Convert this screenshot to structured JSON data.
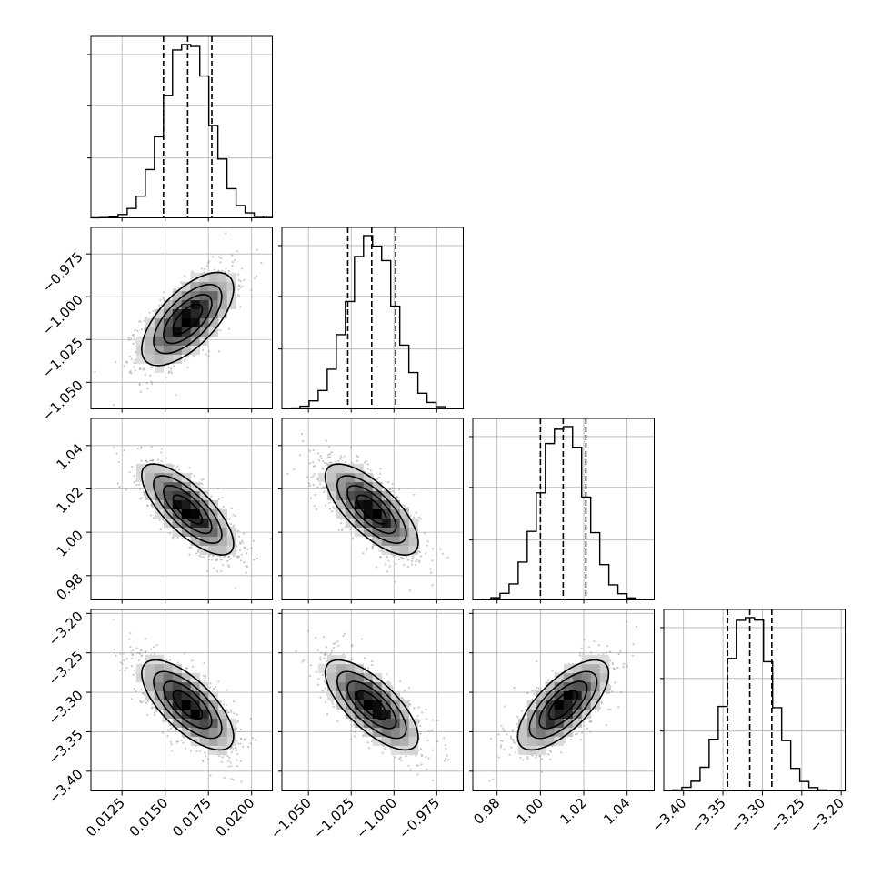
{
  "chart_data": {
    "type": "corner",
    "grid": true,
    "quantile_lines": [
      0.16,
      0.5,
      0.84
    ],
    "colors": {
      "ink": "#000000",
      "grid": "#b0b0b0",
      "scatter": "#9a9a9a"
    },
    "parameters": [
      {
        "mean": 0.0163,
        "sd": 0.00133,
        "hist_max": 1.0,
        "range": [
          0.0107,
          0.0212
        ],
        "ticks": [
          0.0125,
          0.015,
          0.0175,
          0.02
        ],
        "tick_labels": [
          "0.0125",
          "0.0150",
          "0.0175",
          "0.0200"
        ],
        "quantiles": [
          0.0149,
          0.0163,
          0.0177
        ]
      },
      {
        "mean": -1.013,
        "sd": 0.0136,
        "hist_max": 1.0,
        "range": [
          -1.0655,
          -0.9595
        ],
        "ticks": [
          -1.05,
          -1.025,
          -1.0,
          -0.975
        ],
        "tick_labels": [
          "−1.050",
          "−1.025",
          "−1.000",
          "−0.975"
        ],
        "quantiles": [
          -1.027,
          -1.013,
          -0.999
        ]
      },
      {
        "mean": 1.0105,
        "sd": 0.0105,
        "hist_max": 1.0,
        "range": [
          0.9688,
          1.0525
        ],
        "ticks": [
          0.98,
          1.0,
          1.02,
          1.04
        ],
        "tick_labels": [
          "0.98",
          "1.00",
          "1.02",
          "1.04"
        ],
        "quantiles": [
          1.0,
          1.0105,
          1.021
        ]
      },
      {
        "mean": -3.316,
        "sd": 0.0285,
        "hist_max": 1.0,
        "range": [
          -3.425,
          -3.195
        ],
        "ticks": [
          -3.4,
          -3.35,
          -3.3,
          -3.25,
          -3.2
        ],
        "tick_labels": [
          "−3.40",
          "−3.35",
          "−3.30",
          "−3.25",
          "−3.20"
        ],
        "quantiles": [
          -3.344,
          -3.316,
          -3.288
        ]
      }
    ],
    "correlations": [
      [
        1.0,
        0.65,
        -0.75,
        -0.7
      ],
      [
        0.65,
        1.0,
        -0.72,
        -0.72
      ],
      [
        -0.75,
        -0.72,
        1.0,
        0.7
      ],
      [
        -0.7,
        -0.72,
        0.7,
        1.0
      ]
    ],
    "contour_levels_sigma": [
      0.5,
      1.0,
      1.5,
      2.0
    ],
    "hist_bins": 20,
    "density_bins": 20
  }
}
